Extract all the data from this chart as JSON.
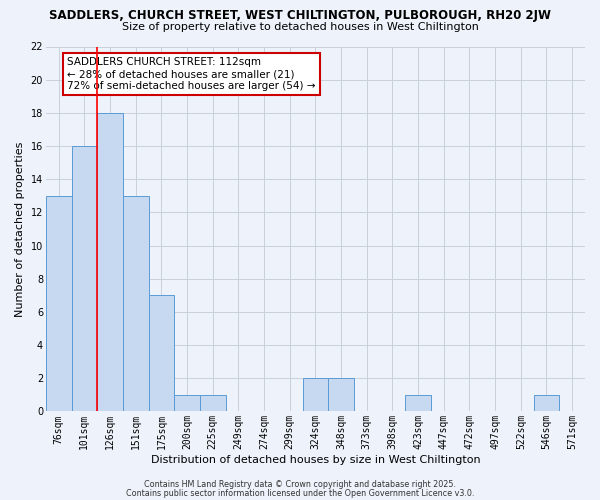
{
  "title": "SADDLERS, CHURCH STREET, WEST CHILTINGTON, PULBOROUGH, RH20 2JW",
  "subtitle": "Size of property relative to detached houses in West Chiltington",
  "xlabel": "Distribution of detached houses by size in West Chiltington",
  "ylabel": "Number of detached properties",
  "bin_labels": [
    "76sqm",
    "101sqm",
    "126sqm",
    "151sqm",
    "175sqm",
    "200sqm",
    "225sqm",
    "249sqm",
    "274sqm",
    "299sqm",
    "324sqm",
    "348sqm",
    "373sqm",
    "398sqm",
    "423sqm",
    "447sqm",
    "472sqm",
    "497sqm",
    "522sqm",
    "546sqm",
    "571sqm"
  ],
  "bar_values": [
    13,
    16,
    18,
    13,
    7,
    1,
    1,
    0,
    0,
    0,
    2,
    2,
    0,
    0,
    1,
    0,
    0,
    0,
    0,
    1,
    0
  ],
  "bar_color": "#c6d9f0",
  "bar_edge_color": "#5b9bd5",
  "grid_color": "#c8d0dc",
  "bg_color": "#eef3fb",
  "red_line_x": 1.5,
  "annotation_text": "SADDLERS CHURCH STREET: 112sqm\n← 28% of detached houses are smaller (21)\n72% of semi-detached houses are larger (54) →",
  "annotation_box_color": "#ffffff",
  "annotation_box_edge": "#cc0000",
  "footer_line1": "Contains HM Land Registry data © Crown copyright and database right 2025.",
  "footer_line2": "Contains public sector information licensed under the Open Government Licence v3.0.",
  "ylim": [
    0,
    22
  ],
  "yticks": [
    0,
    2,
    4,
    6,
    8,
    10,
    12,
    14,
    16,
    18,
    20,
    22
  ],
  "title_fontsize": 8.5,
  "subtitle_fontsize": 8.0,
  "tick_fontsize": 7.0,
  "label_fontsize": 8.0,
  "annot_fontsize": 7.5,
  "footer_fontsize": 5.8
}
